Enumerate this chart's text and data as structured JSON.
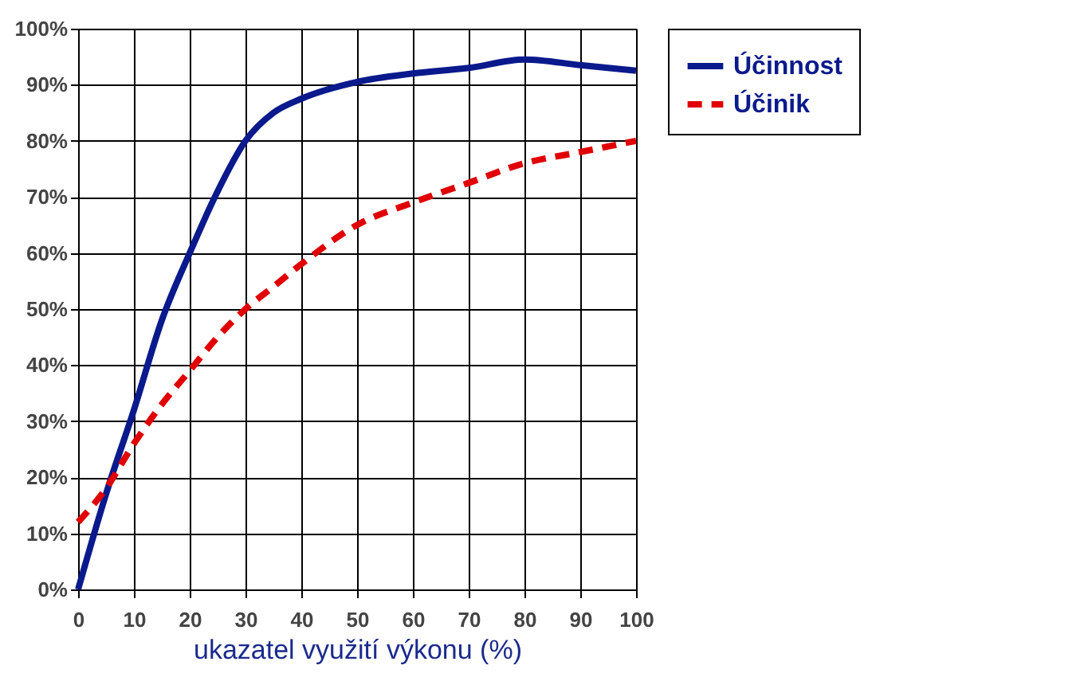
{
  "chart_data": {
    "type": "line",
    "xlabel": "ukazatel využití výkonu (%)",
    "x": [
      0,
      5,
      10,
      15,
      20,
      25,
      30,
      35,
      40,
      50,
      60,
      70,
      80,
      90,
      100
    ],
    "series": [
      {
        "name": "Účinnost",
        "color": "#0a1a8c",
        "line_style": "solid",
        "values": [
          0,
          17,
          32,
          48,
          60,
          71,
          80,
          85,
          87.5,
          90.5,
          92,
          93,
          94.5,
          93.5,
          92.5
        ]
      },
      {
        "name": "Účinik",
        "color": "#e00000",
        "line_style": "dashed",
        "values": [
          12,
          18,
          26,
          33,
          39,
          45,
          50,
          54,
          58,
          65,
          69,
          72.5,
          76,
          78,
          80
        ]
      }
    ],
    "xlim": [
      0,
      100
    ],
    "xticks": [
      0,
      10,
      20,
      30,
      40,
      50,
      60,
      70,
      80,
      90,
      100
    ],
    "ylim": [
      0,
      100
    ],
    "yticks": [
      {
        "value": 0,
        "label": "0%"
      },
      {
        "value": 10,
        "label": "10%"
      },
      {
        "value": 20,
        "label": "20%"
      },
      {
        "value": 30,
        "label": "30%"
      },
      {
        "value": 40,
        "label": "40%"
      },
      {
        "value": 50,
        "label": "50%"
      },
      {
        "value": 60,
        "label": "60%"
      },
      {
        "value": 70,
        "label": "70%"
      },
      {
        "value": 80,
        "label": "80%"
      },
      {
        "value": 90,
        "label": "90%"
      },
      {
        "value": 100,
        "label": "100%"
      }
    ],
    "grid": true,
    "legend": "top right",
    "marker": "none"
  }
}
